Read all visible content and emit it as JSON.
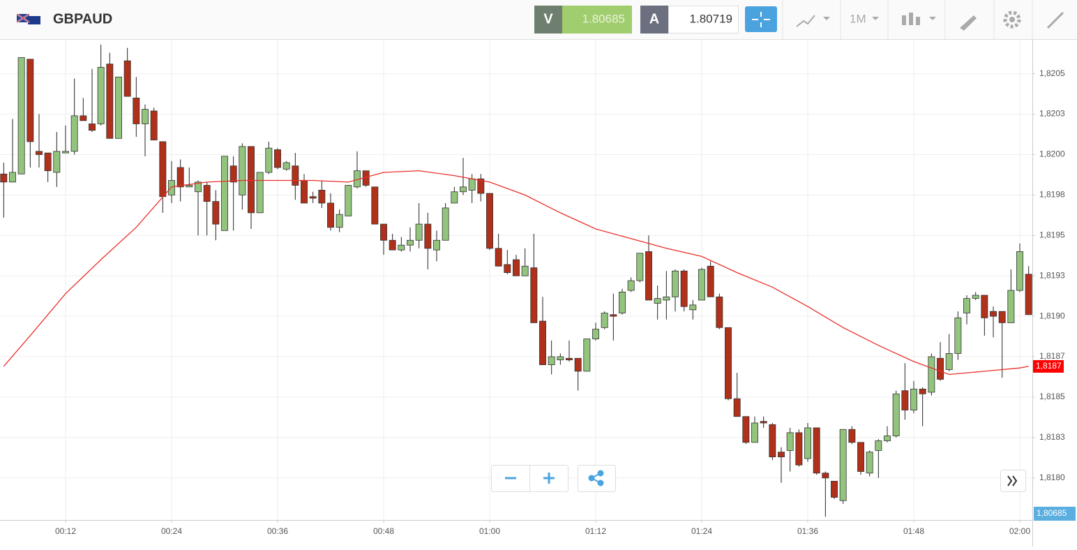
{
  "header": {
    "symbol": "GBPAUD",
    "sell_label": "V",
    "sell_price": "1.80685",
    "buy_label": "A",
    "buy_price": "1.80719",
    "timeframe": "1M"
  },
  "chart_data": {
    "type": "candlestick",
    "x": [
      5,
      6,
      7,
      8,
      9,
      10,
      11,
      12,
      13,
      14,
      15,
      16,
      17,
      18,
      19,
      20,
      21,
      22,
      23,
      24,
      25,
      26,
      27,
      28,
      29,
      30,
      31,
      32,
      33,
      34,
      35,
      36,
      37,
      38,
      39,
      40,
      41,
      42,
      43,
      44,
      45,
      46,
      47,
      48,
      49,
      50,
      51,
      52,
      53,
      54,
      55,
      56,
      57,
      58,
      59,
      60,
      61,
      62,
      63,
      64,
      65,
      66,
      67,
      68,
      69,
      70,
      71,
      72,
      73,
      74,
      75,
      76,
      77,
      78,
      79,
      80,
      81,
      82,
      83,
      84,
      85,
      86,
      87,
      88,
      89,
      90,
      91,
      92,
      93,
      94,
      95,
      96,
      97,
      98,
      99,
      100,
      101,
      102,
      103,
      104,
      105,
      106,
      107,
      108,
      109,
      110,
      111,
      112,
      113,
      114,
      115,
      116,
      117,
      118,
      119,
      120,
      121
    ],
    "open": [
      1.81988,
      1.81983,
      1.81988,
      1.82059,
      1.82002,
      1.82001,
      1.81989,
      1.82001,
      1.82002,
      1.82024,
      1.82019,
      1.82019,
      1.82056,
      1.8201,
      1.82058,
      1.82035,
      1.82019,
      1.82027,
      1.82008,
      1.81975,
      1.81992,
      1.8198,
      1.81977,
      1.81981,
      1.81971,
      1.81953,
      1.81993,
      1.81975,
      1.82005,
      1.81964,
      1.81989,
      1.82003,
      1.81991,
      1.81993,
      1.81984,
      1.81974,
      1.81978,
      1.8197,
      1.81955,
      1.81962,
      1.8198,
      1.8199,
      1.8198,
      1.81957,
      1.81947,
      1.81941,
      1.81944,
      1.81947,
      1.81957,
      1.81941,
      1.81947,
      1.8197,
      1.81977,
      1.81978,
      1.81985,
      1.81976,
      1.81942,
      1.81932,
      1.81935,
      1.81925,
      1.8193,
      1.81897,
      1.8187,
      1.81873,
      1.81874,
      1.81874,
      1.81866,
      1.81886,
      1.81893,
      1.81901,
      1.81902,
      1.81916,
      1.81922,
      1.8194,
      1.81908,
      1.8191,
      1.81912,
      1.81928,
      1.81904,
      1.8191,
      1.81931,
      1.81912,
      1.81893,
      1.81849,
      1.81838,
      1.81822,
      1.81835,
      1.81833,
      1.81816,
      1.81817,
      1.81828,
      1.81812,
      1.81831,
      1.81803,
      1.81798,
      1.81786,
      1.8183,
      1.81822,
      1.81803,
      1.81817,
      1.81823,
      1.81826,
      1.81854,
      1.81842,
      1.81855,
      1.81853,
      1.81874,
      1.81867,
      1.81877,
      1.81902,
      1.81911,
      1.81913,
      1.81903,
      1.81903,
      1.81896,
      1.81916,
      1.81926
    ],
    "high": [
      1.81995,
      1.82022,
      1.8206,
      1.82059,
      1.82025,
      1.82001,
      1.82014,
      1.82018,
      1.82047,
      1.82035,
      1.82053,
      1.82068,
      1.82063,
      1.82048,
      1.82066,
      1.82048,
      1.82031,
      1.82029,
      1.82008,
      1.81996,
      1.81997,
      1.81992,
      1.81984,
      1.81983,
      1.81978,
      1.81999,
      1.81999,
      1.82007,
      1.82005,
      1.81989,
      1.82008,
      1.82004,
      1.81996,
      1.82001,
      1.81988,
      1.81977,
      1.81984,
      1.81976,
      1.81966,
      1.81981,
      1.82002,
      1.8199,
      1.8198,
      1.81957,
      1.81951,
      1.81949,
      1.81955,
      1.8197,
      1.81964,
      1.81953,
      1.8197,
      1.8198,
      1.81998,
      1.81988,
      1.81988,
      1.81976,
      1.81951,
      1.81941,
      1.81938,
      1.81942,
      1.81951,
      1.81912,
      1.81885,
      1.81877,
      1.81885,
      1.81874,
      1.81886,
      1.81896,
      1.81903,
      1.81914,
      1.81917,
      1.81924,
      1.81939,
      1.8195,
      1.81919,
      1.81928,
      1.81929,
      1.81929,
      1.8191,
      1.8193,
      1.81934,
      1.81914,
      1.81893,
      1.81865,
      1.81838,
      1.81838,
      1.81838,
      1.81834,
      1.81819,
      1.81831,
      1.8183,
      1.81834,
      1.81831,
      1.81804,
      1.81798,
      1.8183,
      1.81832,
      1.81822,
      1.81817,
      1.81824,
      1.81832,
      1.81854,
      1.81871,
      1.8186,
      1.81856,
      1.81877,
      1.81884,
      1.81889,
      1.81903,
      1.81913,
      1.81915,
      1.81913,
      1.81906,
      1.81903,
      1.81929,
      1.81945,
      1.81931
    ],
    "low": [
      1.81961,
      1.81983,
      1.81988,
      1.81992,
      1.81992,
      1.81983,
      1.8198,
      1.82001,
      1.82,
      1.82021,
      1.82014,
      1.82018,
      1.8201,
      1.8201,
      1.82036,
      1.82011,
      1.81999,
      1.82009,
      1.81964,
      1.8197,
      1.81971,
      1.8198,
      1.8195,
      1.8195,
      1.81947,
      1.81953,
      1.81953,
      1.81966,
      1.81954,
      1.81964,
      1.81988,
      1.81991,
      1.8199,
      1.81972,
      1.8197,
      1.8197,
      1.81967,
      1.81953,
      1.81952,
      1.81962,
      1.81979,
      1.8198,
      1.81957,
      1.81938,
      1.81941,
      1.8194,
      1.8194,
      1.81942,
      1.81929,
      1.81934,
      1.81947,
      1.8197,
      1.81975,
      1.8197,
      1.81971,
      1.81941,
      1.81931,
      1.81926,
      1.81925,
      1.81925,
      1.81896,
      1.8187,
      1.81864,
      1.8187,
      1.81872,
      1.81854,
      1.81866,
      1.81885,
      1.81892,
      1.81885,
      1.81901,
      1.81915,
      1.81921,
      1.8191,
      1.81898,
      1.81898,
      1.81903,
      1.81903,
      1.81898,
      1.8191,
      1.81912,
      1.81892,
      1.81848,
      1.81838,
      1.81821,
      1.81822,
      1.81831,
      1.81811,
      1.81797,
      1.81804,
      1.81807,
      1.8181,
      1.81802,
      1.81776,
      1.81787,
      1.81784,
      1.81821,
      1.81802,
      1.81801,
      1.818,
      1.81822,
      1.81825,
      1.81836,
      1.8184,
      1.81832,
      1.81851,
      1.8186,
      1.81866,
      1.81873,
      1.81895,
      1.8191,
      1.81888,
      1.81887,
      1.81862,
      1.81896,
      1.81915,
      1.81901
    ],
    "close": [
      1.81983,
      1.81989,
      1.8206,
      1.82008,
      1.82,
      1.8199,
      1.82002,
      1.82002,
      1.82024,
      1.82021,
      1.82015,
      1.82054,
      1.8201,
      1.82048,
      1.82036,
      1.82019,
      1.82028,
      1.82009,
      1.81974,
      1.81984,
      1.8198,
      1.81981,
      1.81983,
      1.81971,
      1.81957,
      1.81999,
      1.81983,
      1.82005,
      1.81964,
      1.81989,
      1.82004,
      1.81992,
      1.81995,
      1.81981,
      1.8197,
      1.81973,
      1.8197,
      1.81955,
      1.81963,
      1.81981,
      1.8199,
      1.81981,
      1.81957,
      1.81947,
      1.81941,
      1.81944,
      1.81947,
      1.81957,
      1.81942,
      1.81947,
      1.81967,
      1.81977,
      1.8198,
      1.81985,
      1.81976,
      1.81942,
      1.81931,
      1.81927,
      1.81925,
      1.81931,
      1.81896,
      1.8187,
      1.81875,
      1.81875,
      1.81873,
      1.81866,
      1.81886,
      1.81892,
      1.81902,
      1.819,
      1.81915,
      1.81922,
      1.81939,
      1.8191,
      1.81911,
      1.81912,
      1.81928,
      1.81906,
      1.81907,
      1.81929,
      1.81912,
      1.81893,
      1.81849,
      1.81838,
      1.81822,
      1.81834,
      1.81834,
      1.81813,
      1.81813,
      1.81828,
      1.81808,
      1.81831,
      1.81803,
      1.818,
      1.81788,
      1.8183,
      1.81822,
      1.81804,
      1.81816,
      1.81823,
      1.81826,
      1.81852,
      1.81842,
      1.81855,
      1.81852,
      1.81875,
      1.81861,
      1.81877,
      1.81899,
      1.81911,
      1.81913,
      1.81899,
      1.819,
      1.81896,
      1.81916,
      1.8194,
      1.81901
    ],
    "up_color": "#93c47d",
    "down_color": "#b0301a",
    "moving_average": {
      "color": "#e8302a",
      "x": [
        5,
        8,
        12,
        16,
        20,
        24,
        28,
        32,
        36,
        40,
        44,
        48,
        52,
        56,
        60,
        64,
        68,
        72,
        76,
        80,
        84,
        88,
        92,
        96,
        100,
        104,
        108,
        112,
        116,
        120,
        121
      ],
      "values": [
        1.81869,
        1.81888,
        1.81914,
        1.81935,
        1.81955,
        1.8198,
        1.81983,
        1.81984,
        1.81984,
        1.81984,
        1.81983,
        1.81989,
        1.8199,
        1.81987,
        1.81983,
        1.81975,
        1.81964,
        1.81954,
        1.81948,
        1.81942,
        1.81937,
        1.81927,
        1.81918,
        1.81906,
        1.81893,
        1.81882,
        1.81872,
        1.81864,
        1.81866,
        1.81868,
        1.81869
      ]
    },
    "last_label": "1,8187",
    "price_label": "1,80685",
    "xlim": [
      4.58,
      121.42
    ],
    "xticks": [
      {
        "value": 12,
        "label": "00:12"
      },
      {
        "value": 24,
        "label": "00:24"
      },
      {
        "value": 36,
        "label": "00:36"
      },
      {
        "value": 48,
        "label": "00:48"
      },
      {
        "value": 60,
        "label": "01:00"
      },
      {
        "value": 72,
        "label": "01:12"
      },
      {
        "value": 84,
        "label": "01:24"
      },
      {
        "value": 96,
        "label": "01:36"
      },
      {
        "value": 108,
        "label": "01:48"
      },
      {
        "value": 120,
        "label": "02:00"
      }
    ],
    "ylim": [
      1.81774,
      1.82071
    ],
    "yticks": [
      {
        "value": 1.8205,
        "label": "1,8205"
      },
      {
        "value": 1.82025,
        "label": "1,8203"
      },
      {
        "value": 1.82,
        "label": "1,8200"
      },
      {
        "value": 1.81975,
        "label": "1,8198"
      },
      {
        "value": 1.8195,
        "label": "1,8195"
      },
      {
        "value": 1.81925,
        "label": "1,8193"
      },
      {
        "value": 1.819,
        "label": "1,8190"
      },
      {
        "value": 1.81875,
        "label": "1,8187"
      },
      {
        "value": 1.8185,
        "label": "1,8185"
      },
      {
        "value": 1.81825,
        "label": "1,8183"
      },
      {
        "value": 1.818,
        "label": "1,8180"
      }
    ],
    "grid": true
  }
}
